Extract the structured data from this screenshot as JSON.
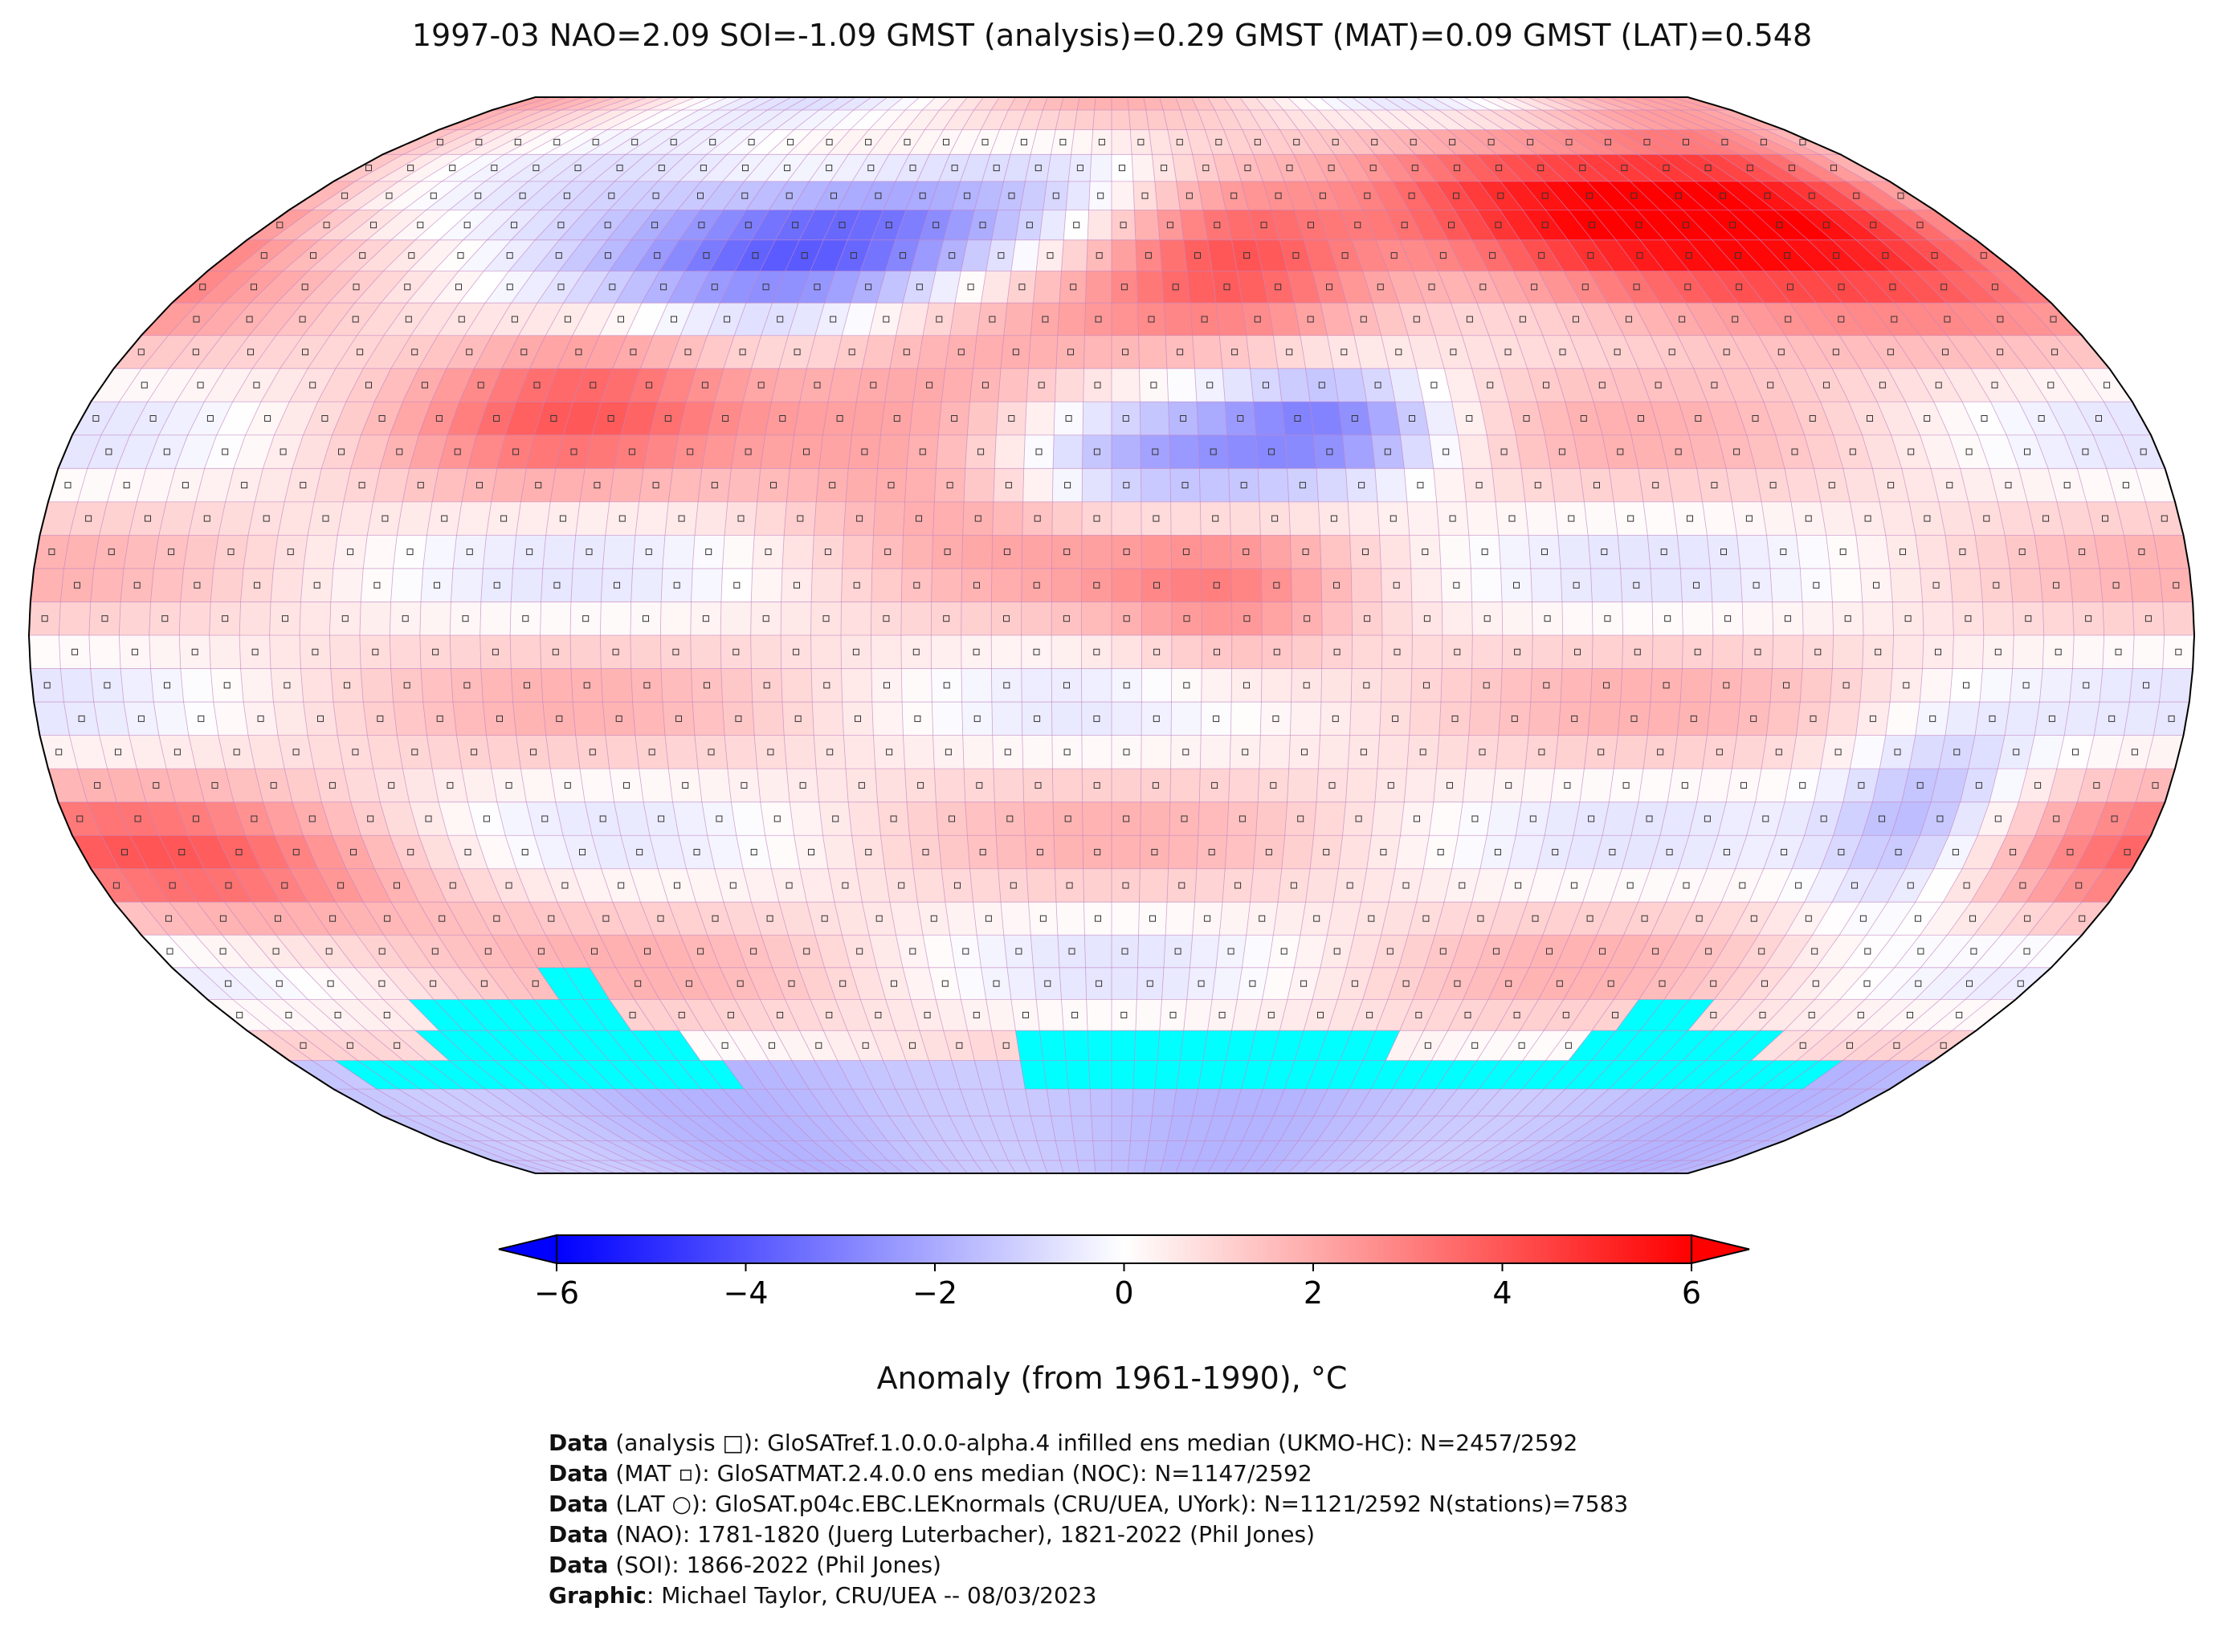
{
  "title": "1997-03 NAO=2.09 SOI=-1.09 GMST (analysis)=0.29 GMST (MAT)=0.09 GMST (LAT)=0.548",
  "colorbar": {
    "label": "Anomaly (from 1961-1990), °C",
    "min": -6,
    "max": 6,
    "ticks": [
      "−6",
      "−4",
      "−2",
      "0",
      "2",
      "4",
      "6"
    ],
    "tick_values": [
      -6,
      -4,
      -2,
      0,
      2,
      4,
      6
    ],
    "colors": [
      "#0000ff",
      "#ffffff",
      "#ff0000"
    ],
    "extend": "both"
  },
  "map": {
    "projection": "robinson",
    "grid_color": "#c080c0",
    "missing_color": "#00ffff"
  },
  "credits": [
    {
      "bold": "Data",
      "text": " (analysis □): GloSATref.1.0.0.0-alpha.4 infilled ens median (UKMO-HC): N=2457/2592"
    },
    {
      "bold": "Data",
      "text": " (MAT ▫): GloSATMAT.2.4.0.0 ens median (NOC): N=1147/2592"
    },
    {
      "bold": "Data",
      "text": " (LAT ○): GloSAT.p04c.EBC.LEKnormals (CRU/UEA, UYork): N=1121/2592 N(stations)=7583"
    },
    {
      "bold": "Data",
      "text": " (NAO): 1781-1820 (Juerg Luterbacher), 1821-2022 (Phil Jones)"
    },
    {
      "bold": "Data",
      "text": " (SOI): 1866-2022 (Phil Jones)"
    },
    {
      "bold": "Graphic",
      "text": ": Michael Taylor, CRU/UEA -- 08/03/2023"
    }
  ]
}
